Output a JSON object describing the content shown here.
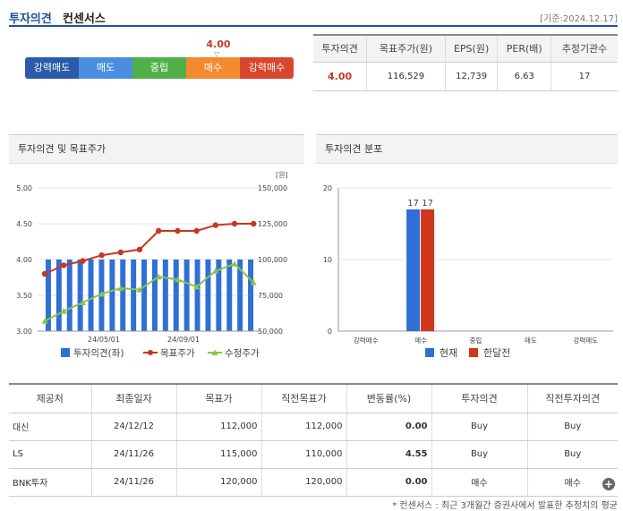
{
  "header": {
    "title": "투자의견",
    "subtitle": "컨센서스",
    "date": "[기준:2024.12.17]"
  },
  "gauge": {
    "value": "4.00",
    "level": 4.0,
    "segments": [
      "강력매도",
      "매도",
      "중립",
      "매수",
      "강력매수"
    ]
  },
  "summary": {
    "headers": [
      "투자의견",
      "목표주가(원)",
      "EPS(원)",
      "PER(배)",
      "추정기관수"
    ],
    "values": [
      "4.00",
      "116,529",
      "12,739",
      "6.63",
      "17"
    ]
  },
  "chart1": {
    "title": "투자의견 및 목표주가",
    "unit": "[원]",
    "left_ticks": [
      "5.00",
      "4.50",
      "4.00",
      "3.50",
      "3.00"
    ],
    "right_ticks": [
      "150,000",
      "125,000",
      "100,000",
      "75,000",
      "50,000"
    ],
    "x_ticks": [
      "24/05/01",
      "24/09/01"
    ],
    "legend": [
      "투자의견(좌)",
      "목표주가",
      "수정주가"
    ]
  },
  "chart2": {
    "title": "투자의견 분포",
    "y_ticks": [
      "20",
      "10",
      "0"
    ],
    "categories": [
      "강력매수",
      "매수",
      "중립",
      "매도",
      "강력매도"
    ],
    "bar_labels": [
      "17",
      "17"
    ],
    "legend": [
      "현재",
      "한달전"
    ]
  },
  "chart_data": [
    {
      "type": "bar+line",
      "title": "투자의견 및 목표주가",
      "ylabel": "",
      "y2label": "[원]",
      "ylim": [
        3.0,
        5.0
      ],
      "y2lim": [
        50000,
        150000
      ],
      "series": [
        {
          "name": "투자의견(좌)",
          "values": [
            4,
            4,
            4,
            4,
            4,
            4,
            4,
            4,
            4,
            4,
            4,
            4,
            4,
            4,
            4,
            4,
            4,
            4,
            4,
            4
          ]
        },
        {
          "name": "목표주가",
          "values": [
            90000,
            96000,
            99000,
            103000,
            105000,
            107000,
            120000,
            120000,
            120000,
            124000,
            125000,
            125000
          ]
        },
        {
          "name": "수정주가",
          "values": [
            57000,
            64000,
            70000,
            76000,
            80000,
            79000,
            88000,
            86000,
            81000,
            92000,
            97000,
            84000
          ]
        }
      ]
    },
    {
      "type": "bar",
      "title": "투자의견 분포",
      "categories": [
        "강력매수",
        "매수",
        "중립",
        "매도",
        "강력매도"
      ],
      "ylim": [
        0,
        20
      ],
      "series": [
        {
          "name": "현재",
          "values": [
            0,
            17,
            0,
            0,
            0
          ]
        },
        {
          "name": "한달전",
          "values": [
            0,
            17,
            0,
            0,
            0
          ]
        }
      ]
    }
  ],
  "records": {
    "headers": [
      "제공처",
      "최종일자",
      "목표가",
      "직전목표가",
      "변동률(%)",
      "투자의견",
      "직전투자의견"
    ],
    "rows": [
      [
        "대신",
        "24/12/12",
        "112,000",
        "112,000",
        "0.00",
        "Buy",
        "Buy"
      ],
      [
        "LS",
        "24/11/26",
        "115,000",
        "110,000",
        "4.55",
        "Buy",
        "Buy"
      ],
      [
        "BNK투자",
        "24/11/26",
        "120,000",
        "120,000",
        "0.00",
        "매수",
        "매수"
      ]
    ]
  },
  "footnote": "* 컨센서스 : 최근 3개월간 증권사에서 발표한 추정치의 평균",
  "colors": {
    "bar_blue": "#2f6fd6",
    "target_red": "#c8361e",
    "price_green": "#8bc34a",
    "dist_blue": "#2f6fd6",
    "dist_red": "#d0361a"
  }
}
